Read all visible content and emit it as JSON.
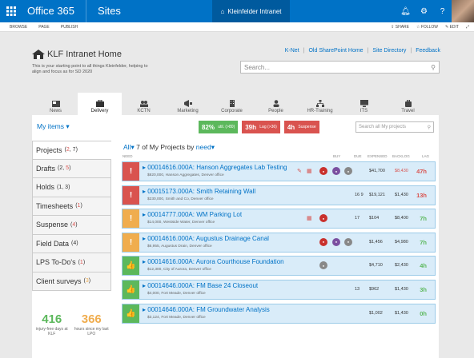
{
  "suite": {
    "title": "Office 365",
    "sites": "Sites",
    "site_tab": "Kleinfelder Intranet"
  },
  "ribbon": {
    "items": [
      "BROWSE",
      "PAGE",
      "PUBLISH"
    ],
    "right": [
      "SHARE",
      "FOLLOW",
      "EDIT"
    ]
  },
  "toplinks": [
    "K-Net",
    "Old SharePoint Home",
    "Site Directory",
    "Feedback"
  ],
  "brand": {
    "title": "KLF Intranet Home",
    "tagline": "This is your starting point to all things Kleinfelder, helping to align and focus as for SD 2020"
  },
  "search": {
    "placeholder": "Search..."
  },
  "nav": [
    {
      "label": "News",
      "icon": "newspaper-icon"
    },
    {
      "label": "Delivery",
      "icon": "briefcase-icon"
    },
    {
      "label": "KCTN",
      "icon": "users-icon"
    },
    {
      "label": "Marketing",
      "icon": "megaphone-icon"
    },
    {
      "label": "Corporate",
      "icon": "building-icon"
    },
    {
      "label": "People",
      "icon": "person-icon"
    },
    {
      "label": "HR-Training",
      "icon": "org-chart-icon"
    },
    {
      "label": "ITS",
      "icon": "monitor-icon"
    },
    {
      "label": "Travel",
      "icon": "suitcase-icon"
    }
  ],
  "panel": {
    "myitems": "My items",
    "badges": [
      {
        "value": "82%",
        "text": "util.",
        "note": "(>80)",
        "color": "#5cb85c"
      },
      {
        "value": "39h",
        "text": "Lag",
        "note": "(>36)",
        "color": "#d9534f"
      },
      {
        "value": "4h",
        "text": "Suspense",
        "note": "",
        "color": "#d9534f"
      }
    ],
    "search_placeholder": "Search all My projects"
  },
  "sidebar": [
    {
      "label": "Projects",
      "counts": [
        {
          "v": "2",
          "c": "red"
        },
        {
          "v": "7",
          "c": ""
        }
      ]
    },
    {
      "label": "Drafts",
      "counts": [
        {
          "v": "2",
          "c": ""
        },
        {
          "v": "5",
          "c": "red"
        }
      ]
    },
    {
      "label": "Holds",
      "counts": [
        {
          "v": "1",
          "c": ""
        },
        {
          "v": "3",
          "c": ""
        }
      ]
    },
    {
      "label": "Timesheets",
      "counts": [
        {
          "v": "1",
          "c": "red"
        }
      ]
    },
    {
      "label": "Suspense",
      "counts": [
        {
          "v": "4",
          "c": "red"
        }
      ]
    },
    {
      "label": "Field Data",
      "counts": [
        {
          "v": "4",
          "c": ""
        }
      ]
    },
    {
      "label": "LPS To-Do's",
      "counts": [
        {
          "v": "1",
          "c": "red"
        }
      ]
    },
    {
      "label": "Client surveys",
      "counts": [
        {
          "v": "3",
          "c": "orange"
        }
      ]
    }
  ],
  "stats": [
    {
      "num": "416",
      "label": "injury-free days at KLF",
      "color": "#5cb85c"
    },
    {
      "num": "366",
      "label": "hours since my last LPO",
      "color": "#f0ad4e"
    }
  ],
  "list": {
    "prefix": "All",
    "count_text": "7 of My Projects by",
    "sort": "need",
    "columns": [
      "NEED",
      "BUY",
      "DUE",
      "EXPENSED",
      "BACKLOG",
      "LAG"
    ]
  },
  "projects": [
    {
      "flag": "!",
      "flag_color": "red",
      "name": "00014616.000A: Hanson Aggregates Lab Testing",
      "sub": "$820,000, Hanson Aggregates, Denver office",
      "due": "",
      "expensed": "$41,700",
      "backlog": "$8,430",
      "backlog_color": "red",
      "lag": "47h",
      "lag_color": "red",
      "circles": [
        "c-red",
        "c-purple",
        "c-gray"
      ]
    },
    {
      "flag": "!",
      "flag_color": "red",
      "name": "00015173.000A: Smith Retaining Wall",
      "sub": "$230,000, Smith and Co, Denver office",
      "due": "16 9",
      "expensed": "$19,121",
      "backlog": "$1,430",
      "backlog_color": "",
      "lag": "13h",
      "lag_color": "red",
      "circles": []
    },
    {
      "flag": "!",
      "flag_color": "yellow",
      "name": "00014777.000A: WM Parking Lot",
      "sub": "$14,000, Westside Water, Denver office",
      "due": "17",
      "expensed": "$104",
      "backlog": "$8,400",
      "backlog_color": "",
      "lag": "7h",
      "lag_color": "green",
      "circles": [
        "c-red"
      ]
    },
    {
      "flag": "!",
      "flag_color": "yellow",
      "name": "00014616.000A: Augustus Drainage Canal",
      "sub": "$6,955, Augustus Drain, Denver office",
      "due": "",
      "expensed": "$1,456",
      "backlog": "$4,980",
      "backlog_color": "",
      "lag": "7h",
      "lag_color": "green",
      "circles": [
        "c-red",
        "c-purple",
        "c-gray"
      ]
    },
    {
      "flag": "👍",
      "flag_color": "green",
      "name": "00014616.000A: Aurora Courthouse Foundation",
      "sub": "$12,300, City of Aurora, Denver office",
      "due": "",
      "expensed": "$4,710",
      "backlog": "$2,430",
      "backlog_color": "",
      "lag": "4h",
      "lag_color": "green",
      "circles": [
        "c-gray"
      ]
    },
    {
      "flag": "👍",
      "flag_color": "green",
      "name": "00014646.000A: FM Base 24 Closeout",
      "sub": "$4,000, Fort Meade, Denver office",
      "due": "13",
      "expensed": "$962",
      "backlog": "$1,430",
      "backlog_color": "",
      "lag": "3h",
      "lag_color": "green",
      "circles": []
    },
    {
      "flag": "👍",
      "flag_color": "green",
      "name": "00014646.000A: FM Groundwater Analysis",
      "sub": "$3,124, Fort Meade, Denver office",
      "due": "",
      "expensed": "$1,002",
      "backlog": "$1,430",
      "backlog_color": "",
      "lag": "0h",
      "lag_color": "green",
      "circles": []
    }
  ]
}
